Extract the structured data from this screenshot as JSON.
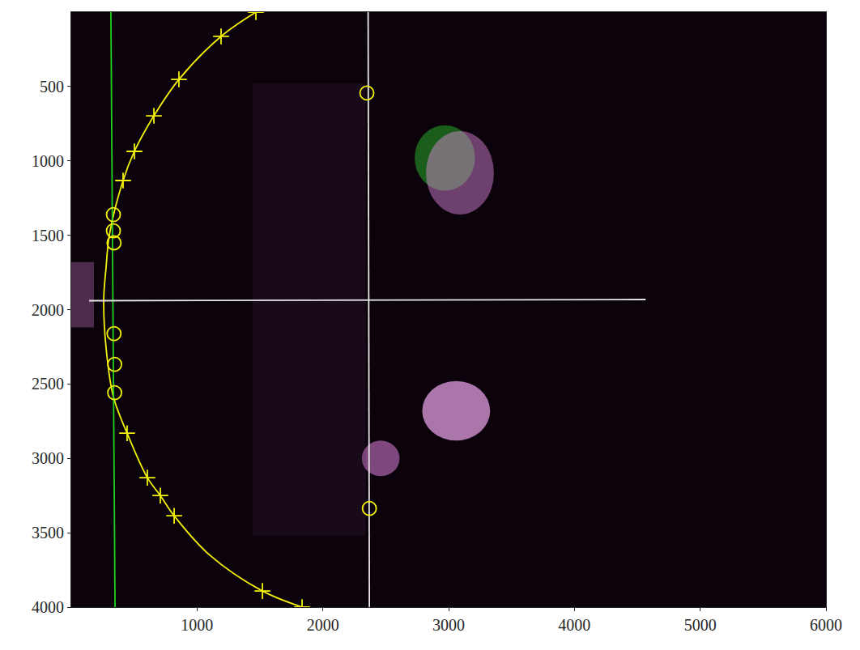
{
  "chart_data": {
    "type": "scatter",
    "xlim": [
      0,
      6000
    ],
    "ylim": [
      4000,
      0
    ],
    "xticks": [
      1000,
      2000,
      3000,
      4000,
      5000,
      6000
    ],
    "yticks": [
      500,
      1000,
      1500,
      2000,
      2500,
      3000,
      3500,
      4000
    ],
    "grid": false,
    "series": [
      {
        "type": "line",
        "color": "#f2f20a",
        "marker": "none",
        "line_style": "solid",
        "x": [
          1468,
          1191,
          856,
          657,
          502,
          412,
          303,
          277,
          258,
          277,
          335,
          444,
          605,
          708,
          818,
          1100,
          1520,
          1835
        ],
        "values": [
          0,
          163,
          452,
          697,
          936,
          1132,
          1497,
          1715,
          1932,
          2259,
          2586,
          2831,
          3130,
          3250,
          3386,
          3650,
          3892,
          4000
        ]
      },
      {
        "type": "scatter",
        "color": "#f2f20a",
        "marker": "plus",
        "line_style": "none",
        "x": [
          1468,
          1191,
          856,
          657,
          502,
          412,
          444,
          605,
          708,
          818,
          1520,
          1835
        ],
        "values": [
          0,
          163,
          452,
          697,
          936,
          1132,
          2831,
          3130,
          3250,
          3386,
          3892,
          4000
        ]
      },
      {
        "type": "line",
        "color": "#1ed41e",
        "marker": "none",
        "line_style": "solid",
        "x": [
          315,
          348
        ],
        "values": [
          0,
          4000
        ]
      },
      {
        "type": "line",
        "color": "#e8e8e8",
        "marker": "none",
        "line_style": "solid",
        "x": [
          2360,
          2370
        ],
        "values": [
          0,
          4000
        ]
      },
      {
        "type": "line",
        "color": "#e8e8e8",
        "marker": "none",
        "line_style": "solid",
        "x": [
          142,
          4566
        ],
        "values": [
          1940,
          1932
        ]
      },
      {
        "type": "scatter",
        "color": "#f2f20a",
        "marker": "circle",
        "line_style": "none",
        "x": [
          335,
          335,
          340,
          340,
          345,
          345,
          2350,
          2370
        ],
        "values": [
          1361,
          1470,
          1551,
          2161,
          2368,
          2558,
          544,
          3337
        ]
      }
    ]
  }
}
